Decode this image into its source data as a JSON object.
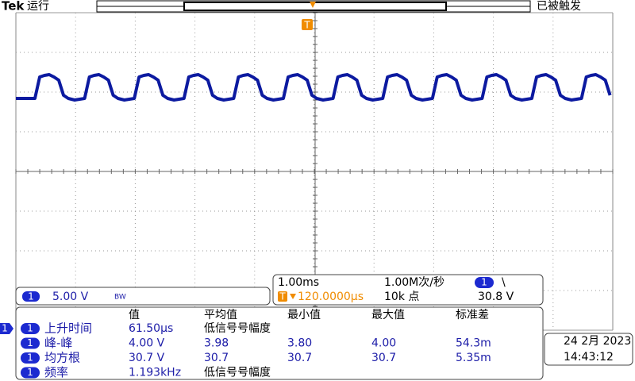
{
  "header": {
    "brand": "Tek",
    "status": "运行",
    "trigger_state": "已被触发",
    "trigger_marker": "T"
  },
  "channel": {
    "badge": "1",
    "scale": "5.00 V",
    "bandwidth": "BW"
  },
  "left_marker": "1",
  "timebase": {
    "time_per_div": "1.00ms",
    "sample_rate": "1.00M次/秒",
    "trigger_source": "1",
    "trigger_slope": "\\",
    "trigger_marker": "T",
    "trigger_delay": "120.0000µs",
    "record_length": "10k 点",
    "trigger_level": "30.8 V"
  },
  "measurements": {
    "headers": [
      "值",
      "平均值",
      "最小值",
      "最大值",
      "标准差"
    ],
    "rows": [
      {
        "badge": "1",
        "name": "上升时间",
        "cells": [
          "61.50µs",
          "低信号号幅度"
        ]
      },
      {
        "badge": "1",
        "name": "峰-峰",
        "cells": [
          "4.00 V",
          "3.98",
          "3.80",
          "4.00",
          "54.3m"
        ]
      },
      {
        "badge": "1",
        "name": "均方根",
        "cells": [
          "30.7 V",
          "30.7",
          "30.7",
          "30.7",
          "5.35m"
        ]
      },
      {
        "badge": "1",
        "name": "频率",
        "cells": [
          "1.193kHz",
          "低信号号幅度"
        ]
      }
    ]
  },
  "datetime": {
    "date": "24 2月 2023",
    "time": "14:43:12"
  }
}
